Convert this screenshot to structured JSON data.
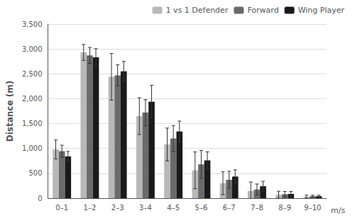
{
  "chart_data": {
    "type": "bar",
    "categories": [
      "0–1",
      "1–2",
      "2–3",
      "3–4",
      "4–5",
      "5–6",
      "6–7",
      "7–8",
      "8–9",
      "9–10"
    ],
    "series": [
      {
        "name": "1 vs 1 Defender",
        "color": "#b8b8b8",
        "values": [
          980,
          2930,
          2440,
          1650,
          1080,
          560,
          300,
          145,
          70,
          30
        ],
        "errors": [
          190,
          160,
          470,
          370,
          330,
          370,
          230,
          180,
          70,
          30
        ]
      },
      {
        "name": "Forward",
        "color": "#6a6a6a",
        "values": [
          945,
          2870,
          2470,
          1720,
          1200,
          680,
          370,
          175,
          80,
          40
        ],
        "errors": [
          120,
          160,
          210,
          260,
          260,
          280,
          170,
          110,
          55,
          20
        ]
      },
      {
        "name": "Wing Player",
        "color": "#1a1a1a",
        "values": [
          840,
          2830,
          2550,
          1940,
          1340,
          760,
          435,
          240,
          85,
          40
        ],
        "errors": [
          100,
          175,
          200,
          330,
          210,
          170,
          135,
          100,
          50,
          20
        ]
      }
    ],
    "ylabel": "Distance (m)",
    "xlabel": "m/s",
    "ylim": [
      0,
      3500
    ],
    "yticks": [
      0,
      500,
      1000,
      1500,
      2000,
      2500,
      3000,
      3500
    ],
    "grid": true,
    "legend": "upper right"
  }
}
